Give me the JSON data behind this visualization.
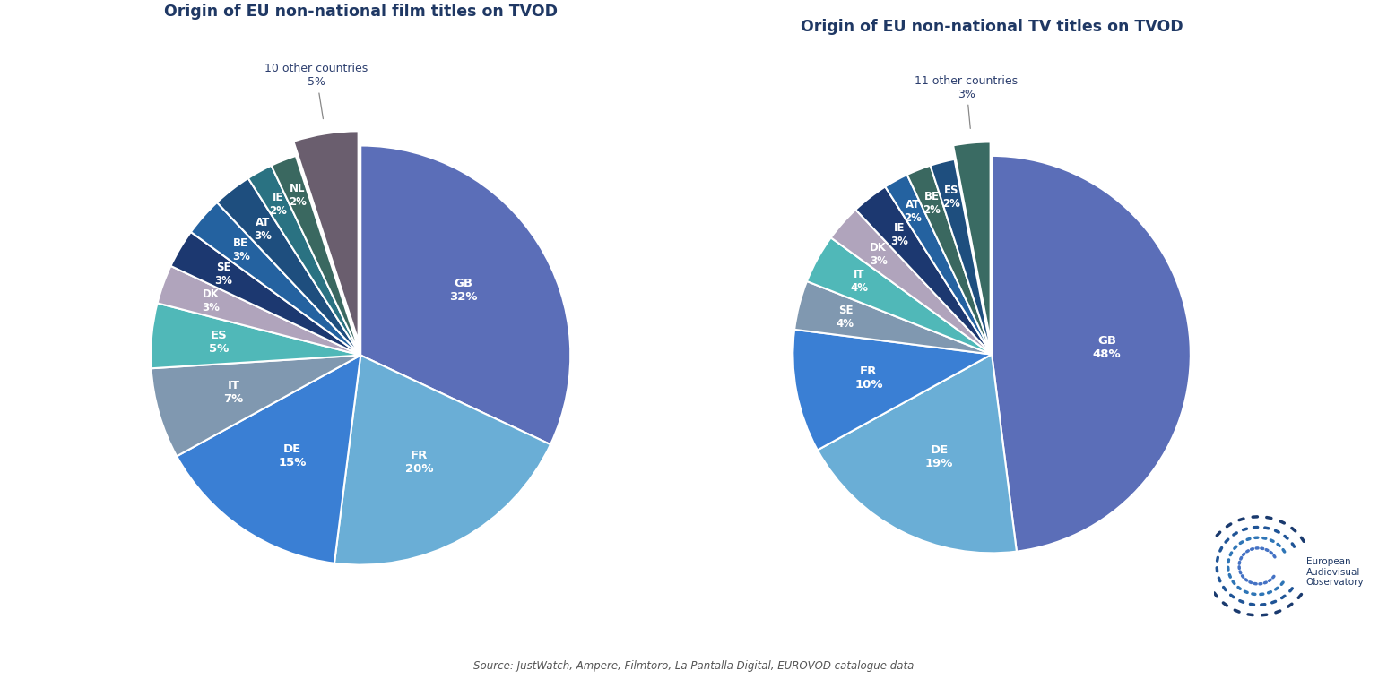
{
  "film": {
    "title": "Origin of EU non-national film titles on TVOD",
    "labels": [
      "GB",
      "FR",
      "DE",
      "IT",
      "ES",
      "DK",
      "SE",
      "BE",
      "AT",
      "IE",
      "NL",
      "10 other countries"
    ],
    "values": [
      32,
      20,
      15,
      7,
      5,
      3,
      3,
      3,
      3,
      2,
      2,
      5
    ],
    "colors": [
      "#5b6eb8",
      "#6aaed6",
      "#3a7fd4",
      "#8098b0",
      "#50b8b8",
      "#b0a4bc",
      "#1c3870",
      "#2462a0",
      "#1e4e7e",
      "#2a7282",
      "#3a6860",
      "#6a5e6e"
    ],
    "startangle": 90,
    "other_label": "10 other countries\n5%",
    "other_idx": 11
  },
  "tv": {
    "title": "Origin of EU non-national TV titles on TVOD",
    "labels": [
      "GB",
      "DE",
      "FR",
      "SE",
      "IT",
      "DK",
      "IE",
      "AT",
      "BE",
      "ES",
      "11 other countries"
    ],
    "values": [
      48,
      19,
      10,
      4,
      4,
      3,
      3,
      2,
      2,
      2,
      3
    ],
    "colors": [
      "#5b6eb8",
      "#6aaed6",
      "#3a7fd4",
      "#8098b0",
      "#50b8b8",
      "#b0a4bc",
      "#1c3870",
      "#2462a0",
      "#3a6860",
      "#1e4e7e",
      "#3a6b63"
    ],
    "startangle": 90,
    "other_label": "11 other countries\n3%",
    "other_idx": 10
  },
  "source_text": "Source: JustWatch, Ampere, Filmtoro, La Pantalla Digital, EUROVOD catalogue data",
  "bg": "#ffffff",
  "title_color": "#1f3864",
  "edge_color": "white",
  "edge_lw": 1.5,
  "label_dark": "#2c3e6e"
}
